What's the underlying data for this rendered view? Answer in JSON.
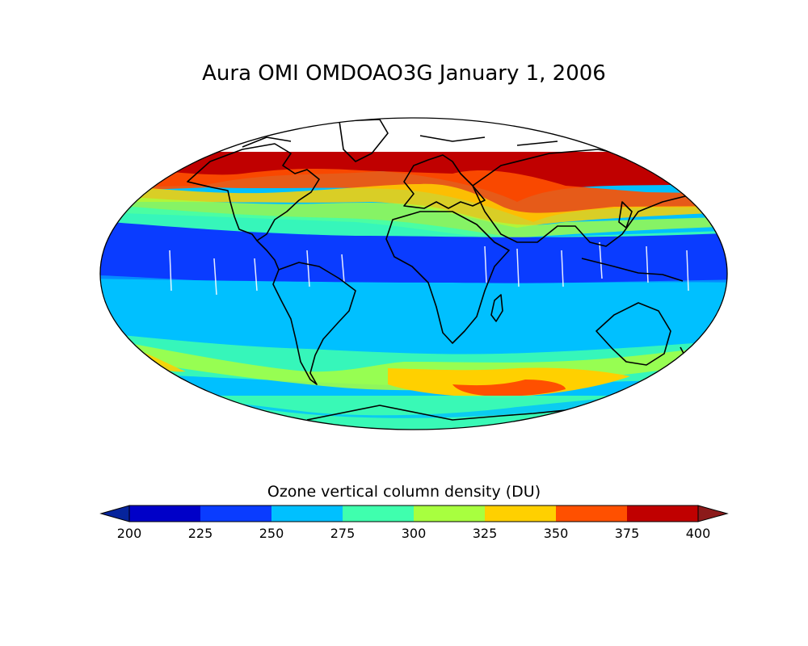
{
  "title": "Aura OMI OMDOAO3G January 1, 2006",
  "colorbar": {
    "label": "Ozone vertical column density (DU)",
    "ticks": [
      "200",
      "225",
      "250",
      "275",
      "300",
      "325",
      "350",
      "375",
      "400"
    ],
    "bins": [
      {
        "from": 200,
        "to": 225,
        "color": "#0000c8"
      },
      {
        "from": 225,
        "to": 250,
        "color": "#0a3cff"
      },
      {
        "from": 250,
        "to": 275,
        "color": "#00c0ff"
      },
      {
        "from": 275,
        "to": 300,
        "color": "#3fffae"
      },
      {
        "from": 300,
        "to": 325,
        "color": "#a8ff3f"
      },
      {
        "from": 325,
        "to": 350,
        "color": "#ffd000"
      },
      {
        "from": 350,
        "to": 375,
        "color": "#ff5000"
      },
      {
        "from": 375,
        "to": 400,
        "color": "#c00000"
      }
    ],
    "under_color": "#06249c",
    "over_color": "#8c1a1a",
    "extend": "both"
  },
  "map": {
    "projection": "Mollweide",
    "coastlines": true,
    "no_data_color": "#ffffff"
  },
  "chart_data": {
    "type": "heatmap",
    "title": "Aura OMI OMDOAO3G January 1, 2006",
    "variable_label": "Ozone vertical column density (DU)",
    "vmin": 200,
    "vmax": 400,
    "levels": [
      200,
      225,
      250,
      275,
      300,
      325,
      350,
      375,
      400
    ],
    "latitude_profile": [
      {
        "lat": 90,
        "value": null
      },
      {
        "lat": 75,
        "value": 380
      },
      {
        "lat": 65,
        "value": 340
      },
      {
        "lat": 55,
        "value": 315
      },
      {
        "lat": 45,
        "value": 290
      },
      {
        "lat": 35,
        "value": 270
      },
      {
        "lat": 25,
        "value": 245
      },
      {
        "lat": 10,
        "value": 235
      },
      {
        "lat": 0,
        "value": 245
      },
      {
        "lat": -15,
        "value": 260
      },
      {
        "lat": -30,
        "value": 270
      },
      {
        "lat": -45,
        "value": 290
      },
      {
        "lat": -55,
        "value": 330
      },
      {
        "lat": -65,
        "value": 290
      },
      {
        "lat": -80,
        "value": 280
      }
    ]
  }
}
